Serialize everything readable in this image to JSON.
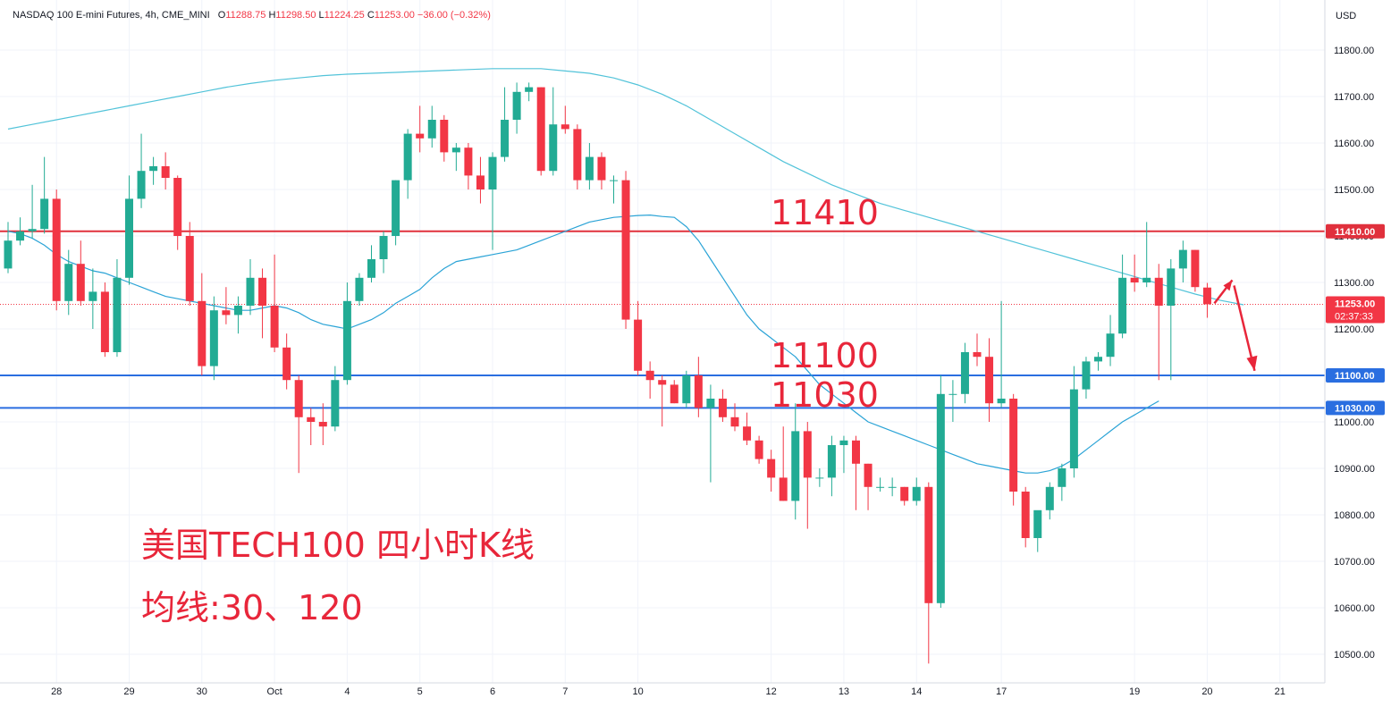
{
  "header": {
    "symbol": "NASDAQ 100 E-mini Futures, 4h, CME_MINI",
    "open_label": "O",
    "open": "11288.75",
    "high_label": "H",
    "high": "11298.50",
    "low_label": "L",
    "low": "11224.25",
    "close_label": "C",
    "close": "11253.00",
    "change": "−36.00 (−0.32%)"
  },
  "currency": "USD",
  "colors": {
    "up": "#22ab94",
    "down": "#f23645",
    "ma30": "#2aa3d6",
    "ma120": "#52c3d9",
    "resistance": "#e0303c",
    "support": "#2a6ee0",
    "annotation": "#e8263a"
  },
  "annotations": {
    "title_line1": "美国TECH100 四小时K线",
    "title_line2": "均线:30、120",
    "level_11410": "11410",
    "level_11100": "11100",
    "level_11030": "11030"
  },
  "chart_data": {
    "type": "candlestick",
    "timeframe": "4h",
    "ylim": [
      10460,
      11890
    ],
    "y_ticks": [
      10500,
      10600,
      10700,
      10800,
      10900,
      11000,
      11100,
      11200,
      11300,
      11400,
      11500,
      11600,
      11700,
      11800
    ],
    "y_tick_labels": [
      "10500.00",
      "10600.00",
      "10700.00",
      "10800.00",
      "10900.00",
      "11000.00",
      "11100.00",
      "11200.00",
      "11300.00",
      "11400.00",
      "11500.00",
      "11600.00",
      "11700.00",
      "11800.00"
    ],
    "x_labels": [
      {
        "label": "28",
        "bar": 4
      },
      {
        "label": "29",
        "bar": 10
      },
      {
        "label": "30",
        "bar": 16
      },
      {
        "label": "Oct",
        "bar": 22
      },
      {
        "label": "4",
        "bar": 28
      },
      {
        "label": "5",
        "bar": 34
      },
      {
        "label": "6",
        "bar": 40
      },
      {
        "label": "7",
        "bar": 46
      },
      {
        "label": "10",
        "bar": 52
      },
      {
        "label": "12",
        "bar": 63
      },
      {
        "label": "13",
        "bar": 69
      },
      {
        "label": "14",
        "bar": 75
      },
      {
        "label": "17",
        "bar": 82
      },
      {
        "label": "19",
        "bar": 93
      },
      {
        "label": "20",
        "bar": 99
      },
      {
        "label": "21",
        "bar": 105
      }
    ],
    "horizontal_levels": [
      {
        "value": 11410,
        "label": "11410.00",
        "kind": "resistance"
      },
      {
        "value": 11100,
        "label": "11100.00",
        "kind": "support"
      },
      {
        "value": 11030,
        "label": "11030.00",
        "kind": "support"
      }
    ],
    "last_price": {
      "value": 11253,
      "label": "11253.00",
      "countdown": "02:37:33"
    },
    "candles": [
      [
        11330,
        11430,
        11320,
        11390
      ],
      [
        11390,
        11440,
        11380,
        11410
      ],
      [
        11410,
        11510,
        11395,
        11415
      ],
      [
        11415,
        11570,
        11405,
        11480
      ],
      [
        11480,
        11500,
        11240,
        11260
      ],
      [
        11260,
        11370,
        11230,
        11340
      ],
      [
        11340,
        11390,
        11250,
        11260
      ],
      [
        11260,
        11330,
        11200,
        11280
      ],
      [
        11280,
        11300,
        11140,
        11150
      ],
      [
        11150,
        11350,
        11140,
        11310
      ],
      [
        11310,
        11530,
        11295,
        11480
      ],
      [
        11480,
        11620,
        11460,
        11540
      ],
      [
        11540,
        11570,
        11510,
        11550
      ],
      [
        11550,
        11580,
        11500,
        11525
      ],
      [
        11525,
        11530,
        11370,
        11400
      ],
      [
        11400,
        11430,
        11250,
        11260
      ],
      [
        11260,
        11320,
        11100,
        11120
      ],
      [
        11120,
        11270,
        11090,
        11240
      ],
      [
        11240,
        11290,
        11210,
        11230
      ],
      [
        11230,
        11270,
        11190,
        11250
      ],
      [
        11250,
        11350,
        11230,
        11310
      ],
      [
        11310,
        11330,
        11180,
        11250
      ],
      [
        11250,
        11360,
        11150,
        11160
      ],
      [
        11160,
        11190,
        11070,
        11090
      ],
      [
        11090,
        11100,
        10890,
        11010
      ],
      [
        11010,
        11030,
        10950,
        11000
      ],
      [
        11000,
        11040,
        10950,
        10990
      ],
      [
        10990,
        11120,
        10980,
        11090
      ],
      [
        11090,
        11300,
        11080,
        11260
      ],
      [
        11260,
        11320,
        11250,
        11310
      ],
      [
        11310,
        11380,
        11300,
        11350
      ],
      [
        11350,
        11410,
        11320,
        11400
      ],
      [
        11400,
        11520,
        11380,
        11520
      ],
      [
        11520,
        11630,
        11480,
        11620
      ],
      [
        11620,
        11680,
        11580,
        11610
      ],
      [
        11610,
        11680,
        11590,
        11650
      ],
      [
        11650,
        11660,
        11560,
        11580
      ],
      [
        11580,
        11600,
        11540,
        11590
      ],
      [
        11590,
        11600,
        11500,
        11530
      ],
      [
        11530,
        11570,
        11470,
        11500
      ],
      [
        11500,
        11580,
        11370,
        11570
      ],
      [
        11570,
        11720,
        11560,
        11650
      ],
      [
        11650,
        11730,
        11620,
        11710
      ],
      [
        11710,
        11730,
        11690,
        11720
      ],
      [
        11720,
        11720,
        11530,
        11540
      ],
      [
        11540,
        11720,
        11530,
        11640
      ],
      [
        11640,
        11680,
        11620,
        11630
      ],
      [
        11630,
        11640,
        11500,
        11520
      ],
      [
        11520,
        11600,
        11500,
        11570
      ],
      [
        11570,
        11580,
        11500,
        11520
      ],
      [
        11520,
        11530,
        11470,
        11520
      ],
      [
        11520,
        11540,
        11200,
        11220
      ],
      [
        11220,
        11260,
        11100,
        11110
      ],
      [
        11110,
        11130,
        11050,
        11090
      ],
      [
        11090,
        11100,
        10990,
        11080
      ],
      [
        11080,
        11090,
        11040,
        11040
      ],
      [
        11040,
        11110,
        11030,
        11100
      ],
      [
        11100,
        11140,
        11010,
        11030
      ],
      [
        11030,
        11080,
        10870,
        11050
      ],
      [
        11050,
        11070,
        11000,
        11010
      ],
      [
        11010,
        11040,
        10980,
        10990
      ],
      [
        10990,
        11020,
        10950,
        10960
      ],
      [
        10960,
        10970,
        10910,
        10920
      ],
      [
        10920,
        10940,
        10850,
        10880
      ],
      [
        10880,
        10990,
        10830,
        10830
      ],
      [
        10830,
        11040,
        10790,
        10980
      ],
      [
        10980,
        11000,
        10770,
        10880
      ],
      [
        10880,
        10900,
        10860,
        10880
      ],
      [
        10880,
        10970,
        10840,
        10950
      ],
      [
        10950,
        10970,
        10890,
        10960
      ],
      [
        10960,
        10970,
        10810,
        10910
      ],
      [
        10910,
        10910,
        10810,
        10860
      ],
      [
        10860,
        10880,
        10850,
        10860
      ],
      [
        10860,
        10880,
        10840,
        10860
      ],
      [
        10860,
        10860,
        10820,
        10830
      ],
      [
        10830,
        10880,
        10820,
        10860
      ],
      [
        10860,
        10870,
        10480,
        10610
      ],
      [
        10610,
        11100,
        10600,
        11060
      ],
      [
        11060,
        11090,
        11000,
        11060
      ],
      [
        11060,
        11170,
        11040,
        11150
      ],
      [
        11150,
        11190,
        11120,
        11140
      ],
      [
        11140,
        11180,
        11000,
        11040
      ],
      [
        11040,
        11260,
        11030,
        11050
      ],
      [
        11050,
        11060,
        10820,
        10850
      ],
      [
        10850,
        10860,
        10730,
        10750
      ],
      [
        10750,
        10800,
        10720,
        10810
      ],
      [
        10810,
        10870,
        10790,
        10860
      ],
      [
        10860,
        10910,
        10830,
        10900
      ],
      [
        10900,
        11120,
        10880,
        11070
      ],
      [
        11070,
        11140,
        11050,
        11130
      ],
      [
        11130,
        11150,
        11110,
        11140
      ],
      [
        11140,
        11230,
        11120,
        11190
      ],
      [
        11190,
        11360,
        11180,
        11310
      ],
      [
        11310,
        11360,
        11280,
        11300
      ],
      [
        11300,
        11430,
        11290,
        11310
      ],
      [
        11310,
        11340,
        11090,
        11250
      ],
      [
        11250,
        11350,
        11090,
        11330
      ],
      [
        11330,
        11390,
        11300,
        11370
      ],
      [
        11370,
        11370,
        11280,
        11290
      ],
      [
        11289,
        11299,
        11224,
        11253
      ]
    ],
    "series": [
      {
        "name": "MA30",
        "values": [
          11410,
          11405,
          11395,
          11380,
          11360,
          11345,
          11335,
          11325,
          11320,
          11310,
          11300,
          11290,
          11280,
          11270,
          11265,
          11260,
          11255,
          11250,
          11245,
          11240,
          11240,
          11245,
          11250,
          11245,
          11235,
          11220,
          11210,
          11205,
          11200,
          11210,
          11220,
          11235,
          11255,
          11270,
          11285,
          11310,
          11330,
          11345,
          11350,
          11355,
          11360,
          11365,
          11370,
          11380,
          11390,
          11400,
          11410,
          11420,
          11430,
          11435,
          11440,
          11442,
          11444,
          11445,
          11442,
          11440,
          11420,
          11390,
          11350,
          11310,
          11270,
          11230,
          11200,
          11180,
          11160,
          11140,
          11110,
          11080,
          11060,
          11040,
          11020,
          11000,
          10990,
          10980,
          10970,
          10960,
          10950,
          10940,
          10930,
          10920,
          10910,
          10905,
          10900,
          10895,
          10890,
          10890,
          10895,
          10905,
          10920,
          10940,
          10960,
          10980,
          11000,
          11015,
          11030,
          11045
        ]
      },
      {
        "name": "MA120",
        "values": [
          11630,
          11640,
          11650,
          11660,
          11670,
          11680,
          11690,
          11700,
          11710,
          11720,
          11728,
          11735,
          11740,
          11745,
          11748,
          11750,
          11752,
          11754,
          11756,
          11758,
          11760,
          11760,
          11760,
          11755,
          11750,
          11740,
          11725,
          11705,
          11680,
          11650,
          11620,
          11590,
          11560,
          11535,
          11510,
          11490,
          11470,
          11455,
          11440,
          11425,
          11410,
          11395,
          11380,
          11365,
          11350,
          11335,
          11320,
          11305,
          11290,
          11275,
          11262,
          11252
        ]
      }
    ]
  }
}
